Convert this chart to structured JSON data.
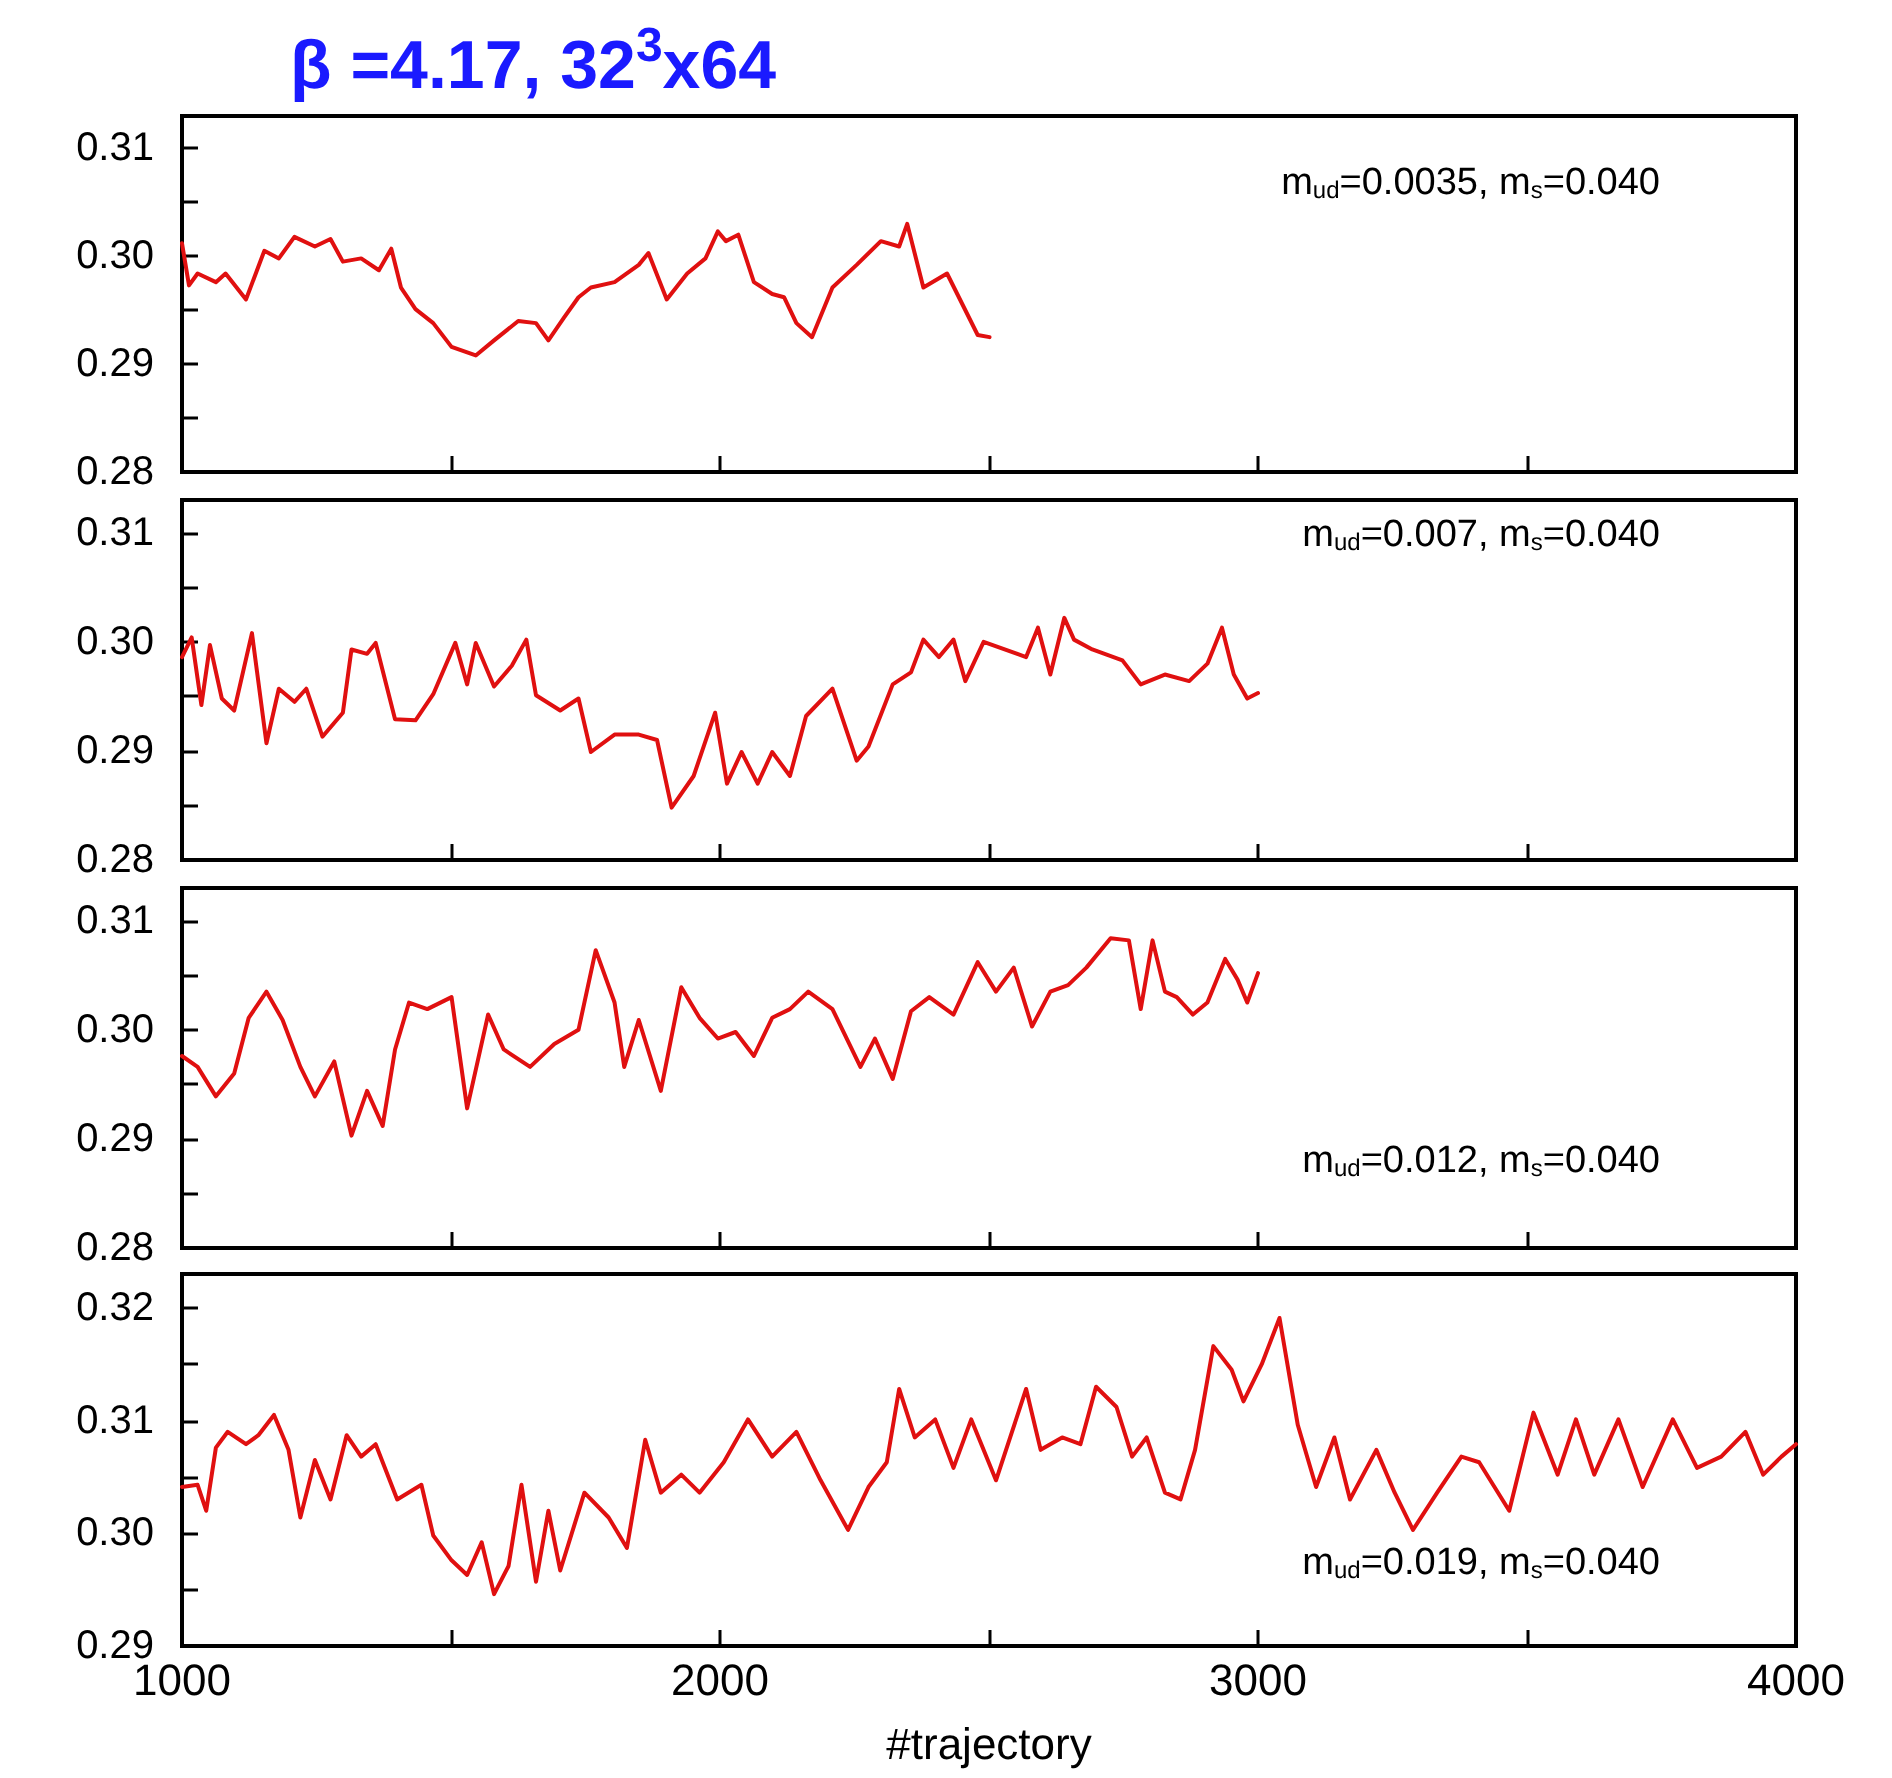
{
  "chart_data": [
    {
      "type": "line",
      "title": "β =4.17, 32$^{3}$x64",
      "annotations": [
        "m$_{ud}$=0.0035, m$_{s}$=0.040"
      ],
      "xlim": [
        1000,
        4000
      ],
      "xticks": [
        1000,
        {
          "value": 1500,
          "label": null
        },
        2000,
        {
          "value": 2500,
          "label": null
        },
        3000,
        {
          "value": 3500,
          "label": null
        },
        4000
      ],
      "ylim": [
        0.28,
        0.313
      ],
      "yticks": [
        0.28,
        {
          "value": 0.285,
          "label": null
        },
        0.29,
        {
          "value": 0.295,
          "label": null
        },
        {
          "value": 0.3,
          "label": "0.30"
        },
        {
          "value": 0.305,
          "label": null
        },
        0.31
      ],
      "tick_labels": "y",
      "marker": "none",
      "line_style": "solid",
      "grid": false,
      "legend": false,
      "series": [
        {
          "color": "#e01010",
          "x": [
            1000,
            1013,
            1029,
            1063,
            1081,
            1119,
            1153,
            1180,
            1209,
            1247,
            1276,
            1299,
            1333,
            1366,
            1389,
            1407,
            1434,
            1467,
            1501,
            1546,
            1580,
            1625,
            1658,
            1681,
            1710,
            1737,
            1760,
            1804,
            1849,
            1867,
            1901,
            1939,
            1973,
            1996,
            2011,
            2034,
            2063,
            2097,
            2119,
            2142,
            2171,
            2209,
            2254,
            2299,
            2333,
            2348,
            2378,
            2422,
            2479,
            2501
          ],
          "values": [
            0.3012,
            0.2973,
            0.2984,
            0.2976,
            0.2984,
            0.296,
            0.3005,
            0.2998,
            0.3018,
            0.3009,
            0.3016,
            0.2995,
            0.2998,
            0.2987,
            0.3007,
            0.2971,
            0.2951,
            0.2938,
            0.2916,
            0.2908,
            0.2922,
            0.294,
            0.2938,
            0.2922,
            0.2943,
            0.2962,
            0.2971,
            0.2976,
            0.2992,
            0.3003,
            0.296,
            0.2984,
            0.2998,
            0.3023,
            0.3014,
            0.302,
            0.2976,
            0.2965,
            0.2962,
            0.2938,
            0.2925,
            0.2971,
            0.2992,
            0.3014,
            0.3009,
            0.303,
            0.2971,
            0.2984,
            0.2927,
            0.2925
          ]
        }
      ]
    },
    {
      "type": "line",
      "annotations": [
        "m$_{ud}$=0.007, m$_{s}$=0.040"
      ],
      "xlim": [
        1000,
        4000
      ],
      "xticks": [
        1000,
        {
          "value": 1500,
          "label": null
        },
        2000,
        {
          "value": 2500,
          "label": null
        },
        3000,
        {
          "value": 3500,
          "label": null
        },
        4000
      ],
      "ylim": [
        0.28,
        0.313
      ],
      "yticks": [
        0.28,
        {
          "value": 0.285,
          "label": null
        },
        0.29,
        {
          "value": 0.295,
          "label": null
        },
        {
          "value": 0.3,
          "label": "0.30"
        },
        {
          "value": 0.305,
          "label": null
        },
        0.31
      ],
      "tick_labels": "y",
      "marker": "none",
      "line_style": "solid",
      "grid": false,
      "legend": false,
      "series": [
        {
          "color": "#e01010",
          "x": [
            1000,
            1018,
            1036,
            1052,
            1074,
            1097,
            1130,
            1157,
            1180,
            1209,
            1231,
            1261,
            1299,
            1315,
            1344,
            1360,
            1396,
            1434,
            1467,
            1508,
            1530,
            1546,
            1580,
            1613,
            1640,
            1658,
            1703,
            1737,
            1760,
            1804,
            1849,
            1883,
            1910,
            1951,
            1991,
            2013,
            2040,
            2070,
            2097,
            2130,
            2160,
            2209,
            2254,
            2276,
            2321,
            2355,
            2378,
            2407,
            2434,
            2456,
            2490,
            2569,
            2591,
            2614,
            2640,
            2658,
            2692,
            2748,
            2782,
            2827,
            2872,
            2906,
            2933,
            2955,
            2980,
            3000
          ],
          "values": [
            0.2986,
            0.3004,
            0.2942,
            0.2997,
            0.2948,
            0.2937,
            0.3008,
            0.2907,
            0.2957,
            0.2945,
            0.2957,
            0.2913,
            0.2935,
            0.2993,
            0.2989,
            0.2999,
            0.2929,
            0.2928,
            0.2952,
            0.2999,
            0.2961,
            0.2999,
            0.2959,
            0.2978,
            0.3002,
            0.2951,
            0.2937,
            0.2948,
            0.2899,
            0.2915,
            0.2915,
            0.291,
            0.2848,
            0.2877,
            0.2935,
            0.287,
            0.2899,
            0.287,
            0.2899,
            0.2877,
            0.2932,
            0.2957,
            0.2891,
            0.2904,
            0.2961,
            0.2972,
            0.3002,
            0.2986,
            0.3002,
            0.2964,
            0.3,
            0.2986,
            0.3013,
            0.297,
            0.3022,
            0.3002,
            0.2993,
            0.2983,
            0.2961,
            0.297,
            0.2964,
            0.298,
            0.3013,
            0.297,
            0.2948,
            0.2953
          ]
        }
      ]
    },
    {
      "type": "line",
      "annotations": [
        "m$_{ud}$=0.012, m$_{s}$=0.040"
      ],
      "xlim": [
        1000,
        4000
      ],
      "xticks": [
        1000,
        {
          "value": 1500,
          "label": null
        },
        2000,
        {
          "value": 2500,
          "label": null
        },
        3000,
        {
          "value": 3500,
          "label": null
        },
        4000
      ],
      "ylim": [
        0.28,
        0.313
      ],
      "yticks": [
        0.28,
        {
          "value": 0.285,
          "label": null
        },
        0.29,
        {
          "value": 0.295,
          "label": null
        },
        {
          "value": 0.3,
          "label": "0.30"
        },
        {
          "value": 0.305,
          "label": null
        },
        0.31
      ],
      "tick_labels": "y",
      "marker": "none",
      "line_style": "solid",
      "grid": false,
      "legend": false,
      "series": [
        {
          "color": "#e01010",
          "x": [
            1000,
            1029,
            1063,
            1097,
            1124,
            1157,
            1187,
            1220,
            1247,
            1283,
            1315,
            1344,
            1373,
            1396,
            1422,
            1456,
            1501,
            1530,
            1569,
            1598,
            1647,
            1692,
            1737,
            1769,
            1804,
            1822,
            1849,
            1890,
            1928,
            1962,
            1996,
            2029,
            2063,
            2097,
            2130,
            2164,
            2209,
            2261,
            2288,
            2321,
            2355,
            2389,
            2434,
            2479,
            2513,
            2546,
            2580,
            2614,
            2647,
            2681,
            2726,
            2760,
            2782,
            2804,
            2827,
            2849,
            2879,
            2906,
            2939,
            2962,
            2980,
            3000
          ],
          "values": [
            0.2976,
            0.2966,
            0.2939,
            0.296,
            0.3011,
            0.3035,
            0.3009,
            0.2966,
            0.2939,
            0.2971,
            0.2903,
            0.2944,
            0.2912,
            0.2982,
            0.3025,
            0.3019,
            0.303,
            0.2928,
            0.3014,
            0.2982,
            0.2966,
            0.2987,
            0.3,
            0.3073,
            0.3025,
            0.2966,
            0.3009,
            0.2944,
            0.3039,
            0.3011,
            0.2992,
            0.2998,
            0.2976,
            0.3011,
            0.3019,
            0.3035,
            0.3019,
            0.2966,
            0.2992,
            0.2955,
            0.3017,
            0.303,
            0.3014,
            0.3062,
            0.3035,
            0.3057,
            0.3003,
            0.3035,
            0.3041,
            0.3057,
            0.3084,
            0.3082,
            0.3019,
            0.3082,
            0.3035,
            0.303,
            0.3014,
            0.3025,
            0.3065,
            0.3046,
            0.3025,
            0.3052
          ]
        }
      ]
    },
    {
      "type": "line",
      "xlabel": "#trajectory",
      "annotations": [
        "m$_{ud}$=0.019, m$_{s}$=0.040"
      ],
      "xlim": [
        1000,
        4000
      ],
      "xticks": [
        1000,
        {
          "value": 1500,
          "label": null
        },
        2000,
        {
          "value": 2500,
          "label": null
        },
        3000,
        {
          "value": 3500,
          "label": null
        },
        4000
      ],
      "ylim": [
        0.29,
        0.323
      ],
      "yticks": [
        0.29,
        {
          "value": 0.295,
          "label": null
        },
        {
          "value": 0.3,
          "label": "0.30"
        },
        {
          "value": 0.305,
          "label": null
        },
        0.31,
        {
          "value": 0.315,
          "label": null
        },
        0.32
      ],
      "marker": "none",
      "line_style": "solid",
      "grid": false,
      "legend": false,
      "series": [
        {
          "color": "#e01010",
          "x": [
            1000,
            1029,
            1045,
            1063,
            1085,
            1119,
            1142,
            1171,
            1198,
            1220,
            1247,
            1276,
            1306,
            1333,
            1360,
            1400,
            1445,
            1467,
            1501,
            1530,
            1557,
            1580,
            1607,
            1631,
            1658,
            1681,
            1703,
            1748,
            1793,
            1827,
            1861,
            1890,
            1928,
            1962,
            2007,
            2052,
            2097,
            2142,
            2187,
            2238,
            2276,
            2310,
            2333,
            2362,
            2400,
            2434,
            2467,
            2513,
            2569,
            2596,
            2636,
            2670,
            2699,
            2737,
            2766,
            2793,
            2827,
            2856,
            2883,
            2917,
            2951,
            2973,
            3007,
            3040,
            3074,
            3108,
            3142,
            3171,
            3220,
            3254,
            3288,
            3333,
            3378,
            3411,
            3467,
            3512,
            3557,
            3591,
            3625,
            3670,
            3715,
            3771,
            3816,
            3861,
            3906,
            3939,
            3973,
            4000
          ],
          "values": [
            0.3041,
            0.3043,
            0.302,
            0.3076,
            0.309,
            0.3079,
            0.3087,
            0.3105,
            0.3074,
            0.3014,
            0.3065,
            0.303,
            0.3087,
            0.3068,
            0.3079,
            0.303,
            0.3043,
            0.2998,
            0.2976,
            0.2963,
            0.2992,
            0.2946,
            0.2971,
            0.3043,
            0.2957,
            0.302,
            0.2967,
            0.3036,
            0.3014,
            0.2987,
            0.3083,
            0.3036,
            0.3052,
            0.3036,
            0.3063,
            0.3101,
            0.3068,
            0.309,
            0.3047,
            0.3003,
            0.3041,
            0.3063,
            0.3128,
            0.3085,
            0.3101,
            0.3058,
            0.3101,
            0.3047,
            0.3128,
            0.3074,
            0.3085,
            0.3079,
            0.313,
            0.3112,
            0.3068,
            0.3085,
            0.3036,
            0.303,
            0.3074,
            0.3166,
            0.3145,
            0.3117,
            0.315,
            0.3191,
            0.3096,
            0.3041,
            0.3085,
            0.303,
            0.3074,
            0.3036,
            0.3003,
            0.3036,
            0.3068,
            0.3063,
            0.302,
            0.3107,
            0.3052,
            0.3101,
            0.3052,
            0.3101,
            0.3041,
            0.3101,
            0.3058,
            0.3068,
            0.309,
            0.3052,
            0.3068,
            0.3079
          ]
        }
      ]
    }
  ]
}
